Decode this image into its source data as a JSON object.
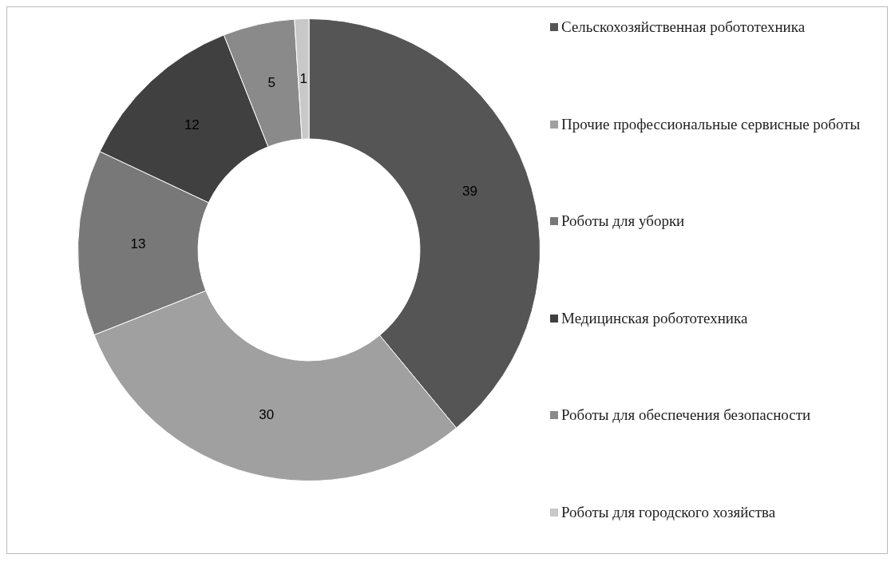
{
  "chart_data": {
    "type": "donut",
    "categories": [
      "Сельскохозяйственная робототехника",
      "Прочие профессиональные сервисные роботы",
      "Роботы для уборки",
      "Медицинская робототехника",
      "Роботы для обеспечения безопасности",
      "Роботы для городского хозяйства"
    ],
    "values": [
      39,
      30,
      13,
      12,
      5,
      1
    ],
    "colors": [
      "#555555",
      "#a0a0a0",
      "#787878",
      "#404040",
      "#8a8a8a",
      "#c8c8c8"
    ],
    "data_labels": true,
    "legend": "right"
  }
}
